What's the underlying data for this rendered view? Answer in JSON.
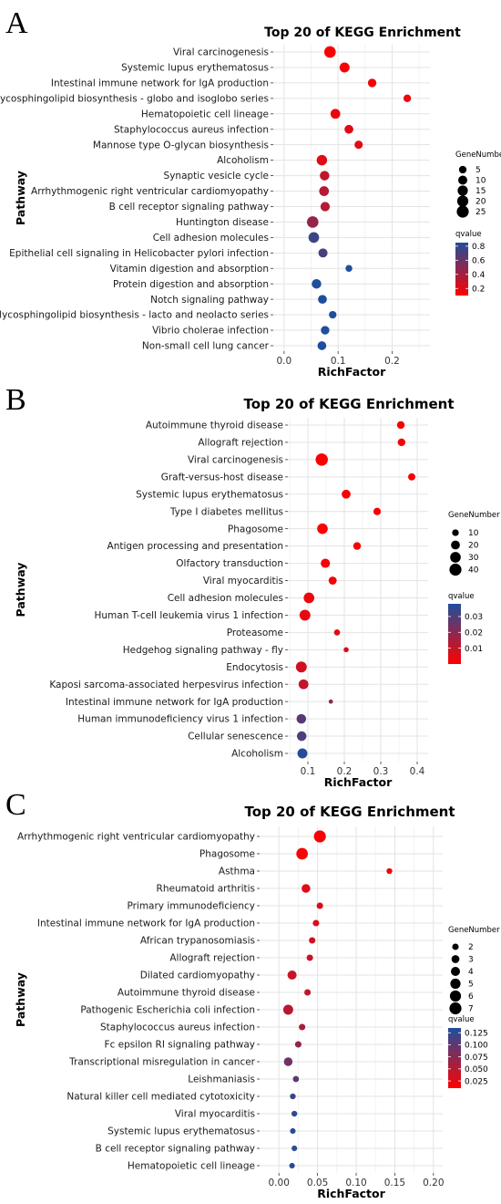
{
  "chart_data": [
    {
      "panel": "A",
      "type": "scatter",
      "title": "Top 20 of KEGG Enrichment",
      "xlabel": "RichFactor",
      "ylabel": "Pathway",
      "xlim": [
        -0.02,
        0.27
      ],
      "xticks": [
        0.0,
        0.1,
        0.2
      ],
      "xtick_labels": [
        "0.0",
        "0.1",
        "0.2"
      ],
      "grid": true,
      "legend_placement": "right",
      "size_legend": {
        "title": "GeneNumber",
        "values": [
          5,
          10,
          15,
          20,
          25
        ],
        "labels": [
          "5",
          "10",
          "15",
          "20",
          "25"
        ]
      },
      "color_legend": {
        "title": "qvalue",
        "min": 0.1,
        "max": 0.85,
        "ticks": [
          0.2,
          0.4,
          0.6,
          0.8
        ],
        "tick_labels": [
          "0.2",
          "0.4",
          "0.6",
          "0.8"
        ],
        "low_color": "#ff0000",
        "high_color": "#1f4e9b"
      },
      "points": [
        {
          "pathway": "Viral carcinogenesis",
          "x": 0.085,
          "size": 22,
          "q": 0.12
        },
        {
          "pathway": "Systemic lupus erythematosus",
          "x": 0.112,
          "size": 14,
          "q": 0.13
        },
        {
          "pathway": "Intestinal immune network for IgA production",
          "x": 0.163,
          "size": 8,
          "q": 0.15
        },
        {
          "pathway": "Glycosphingolipid biosynthesis - globo and isoglobo series",
          "x": 0.228,
          "size": 5,
          "q": 0.15
        },
        {
          "pathway": "Hematopoietic cell lineage",
          "x": 0.095,
          "size": 13,
          "q": 0.17
        },
        {
          "pathway": "Staphylococcus aureus infection",
          "x": 0.12,
          "size": 9,
          "q": 0.2
        },
        {
          "pathway": "Mannose type O-glycan biosynthesis",
          "x": 0.138,
          "size": 7,
          "q": 0.2
        },
        {
          "pathway": "Alcoholism",
          "x": 0.07,
          "size": 16,
          "q": 0.2
        },
        {
          "pathway": "Synaptic vesicle cycle",
          "x": 0.075,
          "size": 12,
          "q": 0.3
        },
        {
          "pathway": "Arrhythmogenic right ventricular cardiomyopathy",
          "x": 0.074,
          "size": 13,
          "q": 0.35
        },
        {
          "pathway": "B cell receptor signaling pathway",
          "x": 0.076,
          "size": 11,
          "q": 0.35
        },
        {
          "pathway": "Huntington disease",
          "x": 0.053,
          "size": 22,
          "q": 0.45
        },
        {
          "pathway": "Cell adhesion molecules",
          "x": 0.055,
          "size": 17,
          "q": 0.75
        },
        {
          "pathway": "Epithelial cell signaling in Helicobacter pylori infection",
          "x": 0.072,
          "size": 10,
          "q": 0.7
        },
        {
          "pathway": "Vitamin digestion and absorption",
          "x": 0.12,
          "size": 3,
          "q": 0.85
        },
        {
          "pathway": "Protein digestion and absorption",
          "x": 0.06,
          "size": 12,
          "q": 0.85
        },
        {
          "pathway": "Notch signaling pathway",
          "x": 0.071,
          "size": 9,
          "q": 0.85
        },
        {
          "pathway": "Glycosphingolipid biosynthesis - lacto and neolacto series",
          "x": 0.09,
          "size": 5,
          "q": 0.85
        },
        {
          "pathway": "Vibrio cholerae infection",
          "x": 0.076,
          "size": 8,
          "q": 0.85
        },
        {
          "pathway": "Non-small cell lung cancer",
          "x": 0.07,
          "size": 9,
          "q": 0.85
        }
      ]
    },
    {
      "panel": "B",
      "type": "scatter",
      "title": "Top 20 of KEGG Enrichment",
      "xlabel": "RichFactor",
      "ylabel": "Pathway",
      "xlim": [
        0.045,
        0.43
      ],
      "xticks": [
        0.1,
        0.2,
        0.3,
        0.4
      ],
      "xtick_labels": [
        "0.1",
        "0.2",
        "0.3",
        "0.4"
      ],
      "grid": true,
      "legend_placement": "right",
      "size_legend": {
        "title": "GeneNumber",
        "values": [
          10,
          20,
          30,
          40
        ],
        "labels": [
          "10",
          "20",
          "30",
          "40"
        ]
      },
      "color_legend": {
        "title": "qvalue",
        "min": 0.0,
        "max": 0.038,
        "ticks": [
          0.01,
          0.02,
          0.03
        ],
        "tick_labels": [
          "0.01",
          "0.02",
          "0.03"
        ],
        "low_color": "#ff0000",
        "high_color": "#1f4e9b"
      },
      "points": [
        {
          "pathway": "Autoimmune thyroid disease",
          "x": 0.355,
          "size": 14,
          "q": 0.001
        },
        {
          "pathway": "Allograft rejection",
          "x": 0.357,
          "size": 14,
          "q": 0.001
        },
        {
          "pathway": "Viral carcinogenesis",
          "x": 0.138,
          "size": 42,
          "q": 0.001
        },
        {
          "pathway": "Graft-versus-host disease",
          "x": 0.385,
          "size": 12,
          "q": 0.001
        },
        {
          "pathway": "Systemic lupus erythematosus",
          "x": 0.205,
          "size": 20,
          "q": 0.001
        },
        {
          "pathway": "Type I diabetes mellitus",
          "x": 0.29,
          "size": 13,
          "q": 0.001
        },
        {
          "pathway": "Phagosome",
          "x": 0.14,
          "size": 30,
          "q": 0.001
        },
        {
          "pathway": "Antigen processing and presentation",
          "x": 0.235,
          "size": 14,
          "q": 0.001
        },
        {
          "pathway": "Olfactory transduction",
          "x": 0.148,
          "size": 22,
          "q": 0.002
        },
        {
          "pathway": "Viral myocarditis",
          "x": 0.168,
          "size": 16,
          "q": 0.002
        },
        {
          "pathway": "Cell adhesion molecules",
          "x": 0.103,
          "size": 30,
          "q": 0.003
        },
        {
          "pathway": "Human T-cell leukemia virus 1 infection",
          "x": 0.092,
          "size": 32,
          "q": 0.004
        },
        {
          "pathway": "Proteasome",
          "x": 0.18,
          "size": 8,
          "q": 0.005
        },
        {
          "pathway": "Hedgehog signaling pathway - fly",
          "x": 0.205,
          "size": 5,
          "q": 0.006
        },
        {
          "pathway": "Endocytosis",
          "x": 0.082,
          "size": 32,
          "q": 0.008
        },
        {
          "pathway": "Kaposi sarcoma-associated herpesvirus infection",
          "x": 0.088,
          "size": 25,
          "q": 0.01
        },
        {
          "pathway": "Intestinal immune network for IgA production",
          "x": 0.163,
          "size": 3,
          "q": 0.02
        },
        {
          "pathway": "Human immunodeficiency virus 1 infection",
          "x": 0.082,
          "size": 24,
          "q": 0.028
        },
        {
          "pathway": "Cellular senescence",
          "x": 0.083,
          "size": 24,
          "q": 0.03
        },
        {
          "pathway": "Alcoholism",
          "x": 0.085,
          "size": 26,
          "q": 0.037
        }
      ]
    },
    {
      "panel": "C",
      "type": "scatter",
      "title": "Top 20 of KEGG Enrichment",
      "xlabel": "RichFactor",
      "ylabel": "Pathway",
      "xlim": [
        -0.025,
        0.212
      ],
      "xticks": [
        0.0,
        0.05,
        0.1,
        0.15,
        0.2
      ],
      "xtick_labels": [
        "0.00",
        "0.05",
        "0.10",
        "0.15",
        "0.20"
      ],
      "grid": true,
      "legend_placement": "right",
      "size_legend": {
        "title": "GeneNumber",
        "values": [
          2,
          3,
          4,
          5,
          6,
          7
        ],
        "labels": [
          "2",
          "3",
          "4",
          "5",
          "6",
          "7"
        ]
      },
      "color_legend": {
        "title": "qvalue",
        "min": 0.01,
        "max": 0.135,
        "ticks": [
          0.025,
          0.05,
          0.075,
          0.1,
          0.125
        ],
        "tick_labels": [
          "0.025",
          "0.050",
          "0.075",
          "0.100",
          "0.125"
        ],
        "low_color": "#ff0000",
        "high_color": "#1f4e9b"
      },
      "points": [
        {
          "pathway": "Arrhythmogenic right ventricular cardiomyopathy",
          "x": 0.053,
          "size": 7,
          "q": 0.015
        },
        {
          "pathway": "Phagosome",
          "x": 0.03,
          "size": 6.5,
          "q": 0.015
        },
        {
          "pathway": "Asthma",
          "x": 0.143,
          "size": 1.6,
          "q": 0.02
        },
        {
          "pathway": "Rheumatoid arthritis",
          "x": 0.035,
          "size": 3.6,
          "q": 0.025
        },
        {
          "pathway": "Primary immunodeficiency",
          "x": 0.053,
          "size": 2,
          "q": 0.03
        },
        {
          "pathway": "Intestinal immune network for IgA production",
          "x": 0.048,
          "size": 2,
          "q": 0.03
        },
        {
          "pathway": "African trypanosomiasis",
          "x": 0.043,
          "size": 2,
          "q": 0.035
        },
        {
          "pathway": "Allograft rejection",
          "x": 0.04,
          "size": 2,
          "q": 0.04
        },
        {
          "pathway": "Dilated cardiomyopathy",
          "x": 0.017,
          "size": 4,
          "q": 0.04
        },
        {
          "pathway": "Autoimmune thyroid disease",
          "x": 0.037,
          "size": 2,
          "q": 0.045
        },
        {
          "pathway": "Pathogenic Escherichia coli infection",
          "x": 0.012,
          "size": 4.8,
          "q": 0.05
        },
        {
          "pathway": "Staphylococcus aureus infection",
          "x": 0.03,
          "size": 2,
          "q": 0.06
        },
        {
          "pathway": "Fc epsilon RI signaling pathway",
          "x": 0.025,
          "size": 2,
          "q": 0.07
        },
        {
          "pathway": "Transcriptional misregulation in cancer",
          "x": 0.012,
          "size": 3.6,
          "q": 0.09
        },
        {
          "pathway": "Leishmaniasis",
          "x": 0.022,
          "size": 1.8,
          "q": 0.1
        },
        {
          "pathway": "Natural killer cell mediated cytotoxicity",
          "x": 0.018,
          "size": 1.6,
          "q": 0.12
        },
        {
          "pathway": "Viral myocarditis",
          "x": 0.02,
          "size": 1.6,
          "q": 0.125
        },
        {
          "pathway": "Systemic lupus erythematosus",
          "x": 0.018,
          "size": 1.5,
          "q": 0.13
        },
        {
          "pathway": "B cell receptor signaling pathway",
          "x": 0.02,
          "size": 1.5,
          "q": 0.13
        },
        {
          "pathway": "Hematopoietic cell lineage",
          "x": 0.017,
          "size": 1.5,
          "q": 0.13
        }
      ]
    }
  ]
}
